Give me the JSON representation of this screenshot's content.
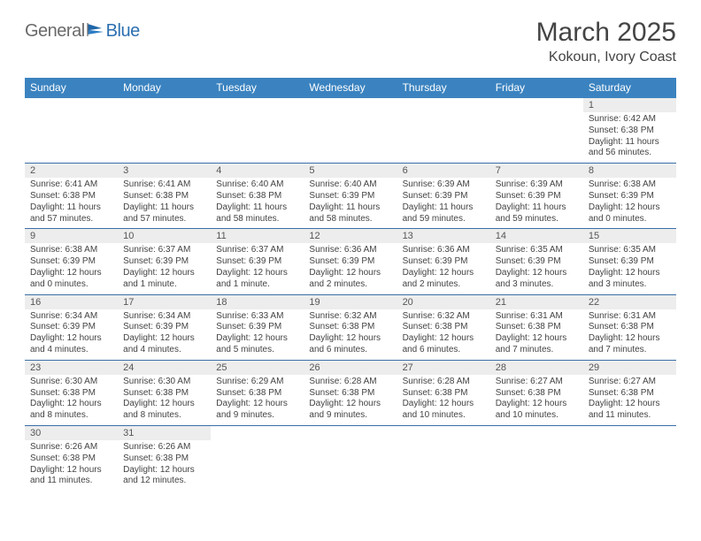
{
  "brand": {
    "part1": "General",
    "part2": "Blue"
  },
  "title": "March 2025",
  "location": "Kokoun, Ivory Coast",
  "colors": {
    "header_bg": "#3b83c0",
    "header_text": "#ffffff",
    "row_border": "#3b6fa8",
    "datenum_bg": "#ededed",
    "body_text": "#434343",
    "logo_gray": "#6a6a6a",
    "logo_blue": "#2b6fb0"
  },
  "day_names": [
    "Sunday",
    "Monday",
    "Tuesday",
    "Wednesday",
    "Thursday",
    "Friday",
    "Saturday"
  ],
  "weeks": [
    [
      {
        "date": "",
        "sunrise": "",
        "sunset": "",
        "daylight": ""
      },
      {
        "date": "",
        "sunrise": "",
        "sunset": "",
        "daylight": ""
      },
      {
        "date": "",
        "sunrise": "",
        "sunset": "",
        "daylight": ""
      },
      {
        "date": "",
        "sunrise": "",
        "sunset": "",
        "daylight": ""
      },
      {
        "date": "",
        "sunrise": "",
        "sunset": "",
        "daylight": ""
      },
      {
        "date": "",
        "sunrise": "",
        "sunset": "",
        "daylight": ""
      },
      {
        "date": "1",
        "sunrise": "Sunrise: 6:42 AM",
        "sunset": "Sunset: 6:38 PM",
        "daylight": "Daylight: 11 hours and 56 minutes."
      }
    ],
    [
      {
        "date": "2",
        "sunrise": "Sunrise: 6:41 AM",
        "sunset": "Sunset: 6:38 PM",
        "daylight": "Daylight: 11 hours and 57 minutes."
      },
      {
        "date": "3",
        "sunrise": "Sunrise: 6:41 AM",
        "sunset": "Sunset: 6:38 PM",
        "daylight": "Daylight: 11 hours and 57 minutes."
      },
      {
        "date": "4",
        "sunrise": "Sunrise: 6:40 AM",
        "sunset": "Sunset: 6:38 PM",
        "daylight": "Daylight: 11 hours and 58 minutes."
      },
      {
        "date": "5",
        "sunrise": "Sunrise: 6:40 AM",
        "sunset": "Sunset: 6:39 PM",
        "daylight": "Daylight: 11 hours and 58 minutes."
      },
      {
        "date": "6",
        "sunrise": "Sunrise: 6:39 AM",
        "sunset": "Sunset: 6:39 PM",
        "daylight": "Daylight: 11 hours and 59 minutes."
      },
      {
        "date": "7",
        "sunrise": "Sunrise: 6:39 AM",
        "sunset": "Sunset: 6:39 PM",
        "daylight": "Daylight: 11 hours and 59 minutes."
      },
      {
        "date": "8",
        "sunrise": "Sunrise: 6:38 AM",
        "sunset": "Sunset: 6:39 PM",
        "daylight": "Daylight: 12 hours and 0 minutes."
      }
    ],
    [
      {
        "date": "9",
        "sunrise": "Sunrise: 6:38 AM",
        "sunset": "Sunset: 6:39 PM",
        "daylight": "Daylight: 12 hours and 0 minutes."
      },
      {
        "date": "10",
        "sunrise": "Sunrise: 6:37 AM",
        "sunset": "Sunset: 6:39 PM",
        "daylight": "Daylight: 12 hours and 1 minute."
      },
      {
        "date": "11",
        "sunrise": "Sunrise: 6:37 AM",
        "sunset": "Sunset: 6:39 PM",
        "daylight": "Daylight: 12 hours and 1 minute."
      },
      {
        "date": "12",
        "sunrise": "Sunrise: 6:36 AM",
        "sunset": "Sunset: 6:39 PM",
        "daylight": "Daylight: 12 hours and 2 minutes."
      },
      {
        "date": "13",
        "sunrise": "Sunrise: 6:36 AM",
        "sunset": "Sunset: 6:39 PM",
        "daylight": "Daylight: 12 hours and 2 minutes."
      },
      {
        "date": "14",
        "sunrise": "Sunrise: 6:35 AM",
        "sunset": "Sunset: 6:39 PM",
        "daylight": "Daylight: 12 hours and 3 minutes."
      },
      {
        "date": "15",
        "sunrise": "Sunrise: 6:35 AM",
        "sunset": "Sunset: 6:39 PM",
        "daylight": "Daylight: 12 hours and 3 minutes."
      }
    ],
    [
      {
        "date": "16",
        "sunrise": "Sunrise: 6:34 AM",
        "sunset": "Sunset: 6:39 PM",
        "daylight": "Daylight: 12 hours and 4 minutes."
      },
      {
        "date": "17",
        "sunrise": "Sunrise: 6:34 AM",
        "sunset": "Sunset: 6:39 PM",
        "daylight": "Daylight: 12 hours and 4 minutes."
      },
      {
        "date": "18",
        "sunrise": "Sunrise: 6:33 AM",
        "sunset": "Sunset: 6:39 PM",
        "daylight": "Daylight: 12 hours and 5 minutes."
      },
      {
        "date": "19",
        "sunrise": "Sunrise: 6:32 AM",
        "sunset": "Sunset: 6:38 PM",
        "daylight": "Daylight: 12 hours and 6 minutes."
      },
      {
        "date": "20",
        "sunrise": "Sunrise: 6:32 AM",
        "sunset": "Sunset: 6:38 PM",
        "daylight": "Daylight: 12 hours and 6 minutes."
      },
      {
        "date": "21",
        "sunrise": "Sunrise: 6:31 AM",
        "sunset": "Sunset: 6:38 PM",
        "daylight": "Daylight: 12 hours and 7 minutes."
      },
      {
        "date": "22",
        "sunrise": "Sunrise: 6:31 AM",
        "sunset": "Sunset: 6:38 PM",
        "daylight": "Daylight: 12 hours and 7 minutes."
      }
    ],
    [
      {
        "date": "23",
        "sunrise": "Sunrise: 6:30 AM",
        "sunset": "Sunset: 6:38 PM",
        "daylight": "Daylight: 12 hours and 8 minutes."
      },
      {
        "date": "24",
        "sunrise": "Sunrise: 6:30 AM",
        "sunset": "Sunset: 6:38 PM",
        "daylight": "Daylight: 12 hours and 8 minutes."
      },
      {
        "date": "25",
        "sunrise": "Sunrise: 6:29 AM",
        "sunset": "Sunset: 6:38 PM",
        "daylight": "Daylight: 12 hours and 9 minutes."
      },
      {
        "date": "26",
        "sunrise": "Sunrise: 6:28 AM",
        "sunset": "Sunset: 6:38 PM",
        "daylight": "Daylight: 12 hours and 9 minutes."
      },
      {
        "date": "27",
        "sunrise": "Sunrise: 6:28 AM",
        "sunset": "Sunset: 6:38 PM",
        "daylight": "Daylight: 12 hours and 10 minutes."
      },
      {
        "date": "28",
        "sunrise": "Sunrise: 6:27 AM",
        "sunset": "Sunset: 6:38 PM",
        "daylight": "Daylight: 12 hours and 10 minutes."
      },
      {
        "date": "29",
        "sunrise": "Sunrise: 6:27 AM",
        "sunset": "Sunset: 6:38 PM",
        "daylight": "Daylight: 12 hours and 11 minutes."
      }
    ],
    [
      {
        "date": "30",
        "sunrise": "Sunrise: 6:26 AM",
        "sunset": "Sunset: 6:38 PM",
        "daylight": "Daylight: 12 hours and 11 minutes."
      },
      {
        "date": "31",
        "sunrise": "Sunrise: 6:26 AM",
        "sunset": "Sunset: 6:38 PM",
        "daylight": "Daylight: 12 hours and 12 minutes."
      },
      {
        "date": "",
        "sunrise": "",
        "sunset": "",
        "daylight": ""
      },
      {
        "date": "",
        "sunrise": "",
        "sunset": "",
        "daylight": ""
      },
      {
        "date": "",
        "sunrise": "",
        "sunset": "",
        "daylight": ""
      },
      {
        "date": "",
        "sunrise": "",
        "sunset": "",
        "daylight": ""
      },
      {
        "date": "",
        "sunrise": "",
        "sunset": "",
        "daylight": ""
      }
    ]
  ]
}
